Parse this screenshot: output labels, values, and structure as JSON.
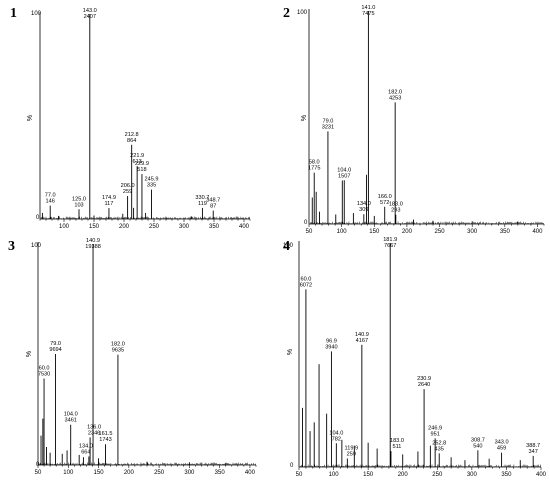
{
  "chart_data": [
    {
      "type": "bar",
      "panel_label": "1",
      "ylabel": "%",
      "ytick_labels": [
        "100",
        "0"
      ],
      "xlim": [
        60,
        410
      ],
      "ylim": [
        0,
        100
      ],
      "xticks": [
        100,
        150,
        200,
        250,
        300,
        350,
        400
      ],
      "peaks": [
        {
          "mz": 77.0,
          "intensity": 146,
          "label": true
        },
        {
          "mz": 125.0,
          "intensity": 103,
          "label": true
        },
        {
          "mz": 143.0,
          "intensity": 2407,
          "label": true
        },
        {
          "mz": 174.9,
          "intensity": 117,
          "label": true
        },
        {
          "mz": 206.0,
          "intensity": 259,
          "label": true
        },
        {
          "mz": 212.8,
          "intensity": 864,
          "label": true
        },
        {
          "mz": 221.9,
          "intensity": 613,
          "label": true
        },
        {
          "mz": 229.9,
          "intensity": 518,
          "label": true
        },
        {
          "mz": 245.9,
          "intensity": 335,
          "label": true
        },
        {
          "mz": 330.7,
          "intensity": 119,
          "label": true
        },
        {
          "mz": 348.7,
          "intensity": 87,
          "label": true
        },
        {
          "mz": 64,
          "intensity": 60
        },
        {
          "mz": 91,
          "intensity": 25
        },
        {
          "mz": 150,
          "intensity": 30
        },
        {
          "mz": 198,
          "intensity": 50
        },
        {
          "mz": 216,
          "intensity": 120
        },
        {
          "mz": 236,
          "intensity": 60
        },
        {
          "mz": 270,
          "intensity": 15
        },
        {
          "mz": 312,
          "intensity": 20
        }
      ]
    },
    {
      "type": "bar",
      "panel_label": "2",
      "ylabel": "%",
      "ytick_labels": [
        "100",
        "0"
      ],
      "xlim": [
        50,
        410
      ],
      "ylim": [
        0,
        100
      ],
      "xticks": [
        50,
        100,
        150,
        200,
        250,
        300,
        350,
        400
      ],
      "peaks": [
        {
          "mz": 58.0,
          "intensity": 1775,
          "label": true
        },
        {
          "mz": 79.0,
          "intensity": 3231,
          "label": true
        },
        {
          "mz": 104.0,
          "intensity": 1507,
          "label": true
        },
        {
          "mz": 134.0,
          "intensity": 309,
          "label": true
        },
        {
          "mz": 141.0,
          "intensity": 7475,
          "label": true
        },
        {
          "mz": 166.0,
          "intensity": 572,
          "label": true
        },
        {
          "mz": 182.0,
          "intensity": 4253,
          "label": true
        },
        {
          "mz": 183.0,
          "intensity": 293,
          "label": true
        },
        {
          "mz": 55,
          "intensity": 900
        },
        {
          "mz": 61,
          "intensity": 1100
        },
        {
          "mz": 66,
          "intensity": 400
        },
        {
          "mz": 91,
          "intensity": 300
        },
        {
          "mz": 101,
          "intensity": 1500
        },
        {
          "mz": 118,
          "intensity": 350
        },
        {
          "mz": 138,
          "intensity": 1700
        },
        {
          "mz": 150,
          "intensity": 250
        },
        {
          "mz": 210,
          "intensity": 120
        },
        {
          "mz": 240,
          "intensity": 80
        },
        {
          "mz": 300,
          "intensity": 60
        },
        {
          "mz": 370,
          "intensity": 50
        }
      ]
    },
    {
      "type": "bar",
      "panel_label": "3",
      "ylabel": "%",
      "ytick_labels": [
        "100",
        "0"
      ],
      "xlim": [
        50,
        410
      ],
      "ylim": [
        0,
        100
      ],
      "xticks": [
        50,
        100,
        150,
        200,
        250,
        300,
        350,
        400
      ],
      "peaks": [
        {
          "mz": 60.0,
          "intensity": 7530,
          "label": true
        },
        {
          "mz": 79.0,
          "intensity": 9694,
          "label": true
        },
        {
          "mz": 104.0,
          "intensity": 3461,
          "label": true
        },
        {
          "mz": 134.0,
          "intensity": 664,
          "label": true
        },
        {
          "mz": 136.0,
          "intensity": 2346,
          "label": true
        },
        {
          "mz": 140.9,
          "intensity": 19388,
          "label": true
        },
        {
          "mz": 161.5,
          "intensity": 1743,
          "label": true
        },
        {
          "mz": 182.0,
          "intensity": 9635,
          "label": true
        },
        {
          "mz": 55,
          "intensity": 2500
        },
        {
          "mz": 58,
          "intensity": 4000
        },
        {
          "mz": 64,
          "intensity": 1500
        },
        {
          "mz": 70,
          "intensity": 1000
        },
        {
          "mz": 90,
          "intensity": 900
        },
        {
          "mz": 98,
          "intensity": 1200
        },
        {
          "mz": 118,
          "intensity": 800
        },
        {
          "mz": 125,
          "intensity": 600
        },
        {
          "mz": 150,
          "intensity": 500
        },
        {
          "mz": 230,
          "intensity": 200
        },
        {
          "mz": 300,
          "intensity": 150
        },
        {
          "mz": 360,
          "intensity": 100
        }
      ]
    },
    {
      "type": "bar",
      "panel_label": "4",
      "ylabel": "%",
      "ytick_labels": [
        "100",
        "0"
      ],
      "xlim": [
        50,
        400
      ],
      "ylim": [
        0,
        100
      ],
      "xticks": [
        50,
        100,
        150,
        200,
        250,
        300,
        350,
        400
      ],
      "peaks": [
        {
          "mz": 60.0,
          "intensity": 6072,
          "label": true
        },
        {
          "mz": 96.9,
          "intensity": 3940,
          "label": true
        },
        {
          "mz": 104.0,
          "intensity": 782,
          "label": true
        },
        {
          "mz": 119.9,
          "intensity": 259,
          "label": true
        },
        {
          "mz": 140.9,
          "intensity": 4167,
          "label": true
        },
        {
          "mz": 181.9,
          "intensity": 7667,
          "label": true
        },
        {
          "mz": 183.0,
          "intensity": 511,
          "label": true
        },
        {
          "mz": 230.9,
          "intensity": 2640,
          "label": true
        },
        {
          "mz": 246.9,
          "intensity": 951,
          "label": true
        },
        {
          "mz": 252.8,
          "intensity": 435,
          "label": true
        },
        {
          "mz": 308.7,
          "intensity": 540,
          "label": true
        },
        {
          "mz": 343.0,
          "intensity": 459,
          "label": true
        },
        {
          "mz": 388.7,
          "intensity": 347,
          "label": true
        },
        {
          "mz": 55,
          "intensity": 2000
        },
        {
          "mz": 66,
          "intensity": 1200
        },
        {
          "mz": 72,
          "intensity": 1500
        },
        {
          "mz": 79,
          "intensity": 3500
        },
        {
          "mz": 90,
          "intensity": 1800
        },
        {
          "mz": 112,
          "intensity": 900
        },
        {
          "mz": 130,
          "intensity": 700
        },
        {
          "mz": 150,
          "intensity": 800
        },
        {
          "mz": 163,
          "intensity": 600
        },
        {
          "mz": 200,
          "intensity": 400
        },
        {
          "mz": 222,
          "intensity": 500
        },
        {
          "mz": 240,
          "intensity": 700
        },
        {
          "mz": 270,
          "intensity": 300
        },
        {
          "mz": 290,
          "intensity": 200
        },
        {
          "mz": 325,
          "intensity": 250
        },
        {
          "mz": 370,
          "intensity": 200
        }
      ]
    }
  ]
}
